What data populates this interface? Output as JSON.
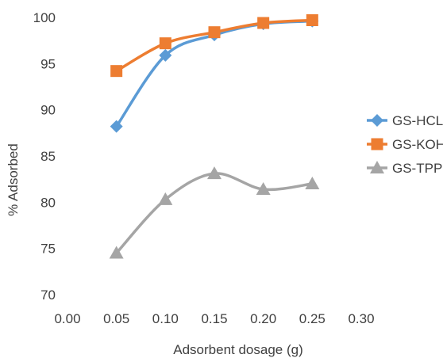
{
  "chart_data": {
    "type": "line",
    "xlabel": "Adsorbent dosage (g)",
    "ylabel": "% Adsorbed",
    "xlim": [
      0.0,
      0.3
    ],
    "ylim": [
      70,
      100
    ],
    "x_ticks": [
      "0.00",
      "0.05",
      "0.10",
      "0.15",
      "0.20",
      "0.25",
      "0.30"
    ],
    "y_ticks": [
      "70",
      "75",
      "80",
      "85",
      "90",
      "95",
      "100"
    ],
    "grid": false,
    "legend_position": "right",
    "x": [
      0.05,
      0.1,
      0.15,
      0.2,
      0.25
    ],
    "series": [
      {
        "name": "GS-HCL",
        "values": [
          88.2,
          95.9,
          98.1,
          99.3,
          99.6
        ],
        "color": "#5B9BD5",
        "marker": "diamond"
      },
      {
        "name": "GS-KOH",
        "values": [
          94.2,
          97.2,
          98.4,
          99.4,
          99.7
        ],
        "color": "#ED7D31",
        "marker": "square"
      },
      {
        "name": "GS-TPP",
        "values": [
          74.5,
          80.3,
          83.1,
          81.4,
          82.0
        ],
        "color": "#A5A5A5",
        "marker": "triangle"
      }
    ]
  }
}
